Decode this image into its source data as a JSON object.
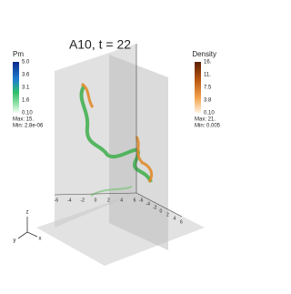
{
  "title": "A10, t = 22",
  "colorbars": [
    {
      "title": "Pm",
      "ticks": [
        "5.0",
        "3.6",
        "3.1",
        "1.6",
        "0.10"
      ],
      "max": "Max: 15.",
      "min": "Min: 2.8e-06"
    },
    {
      "title": "Density",
      "ticks": [
        "16.",
        "11.",
        "7.5",
        "3.8",
        "0.10"
      ],
      "max": "Max: 21.",
      "min": "Min: 0.005"
    }
  ],
  "axis_labels": [
    "-6",
    "-4",
    "-2",
    "0",
    "2",
    "4",
    "6"
  ],
  "orientation": [
    "z",
    "y",
    "x"
  ]
}
